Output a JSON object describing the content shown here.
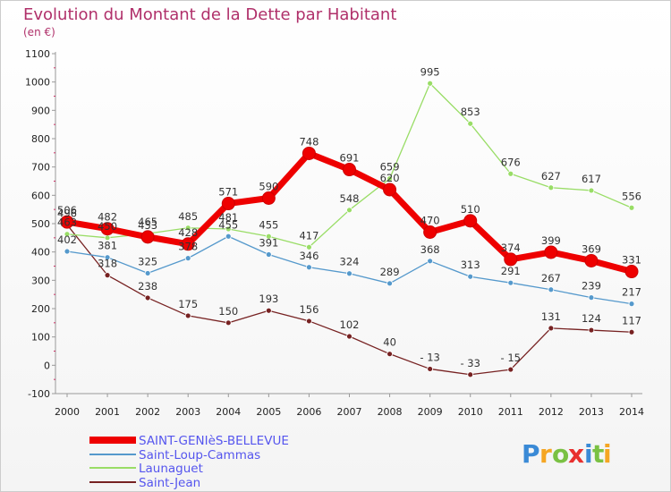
{
  "chart_data": {
    "type": "line",
    "title": "Evolution du Montant de la Dette par Habitant",
    "subtitle": "(en €)",
    "x": [
      "2000",
      "2001",
      "2002",
      "2003",
      "2004",
      "2005",
      "2006",
      "2007",
      "2008",
      "2009",
      "2010",
      "2011",
      "2012",
      "2013",
      "2014"
    ],
    "ylim": [
      -100,
      1100
    ],
    "yticks": [
      -100,
      0,
      100,
      200,
      300,
      400,
      500,
      600,
      700,
      800,
      900,
      1000,
      1100
    ],
    "grid": false,
    "legend_position": "bottom-left",
    "series": [
      {
        "name": "SAINT-GENIèS-BELLEVUE",
        "color": "#ee0000",
        "values": [
          506,
          482,
          453,
          428,
          571,
          590,
          748,
          691,
          620,
          470,
          510,
          374,
          399,
          369,
          331
        ],
        "labels": [
          "506",
          "482",
          "453",
          "428",
          "571",
          "590",
          "748",
          "691",
          "620",
          "470",
          "510",
          "374",
          "399",
          "369",
          "331"
        ]
      },
      {
        "name": "Saint-Loup-Cammas",
        "color": "#5599cc",
        "values": [
          402,
          381,
          325,
          378,
          455,
          391,
          346,
          324,
          289,
          368,
          313,
          291,
          267,
          239,
          217
        ],
        "labels": [
          "402",
          "381",
          "325",
          "378",
          "455",
          "391",
          "346",
          "324",
          "289",
          "368",
          "313",
          "291",
          "267",
          "239",
          "217"
        ]
      },
      {
        "name": "Launaguet",
        "color": "#99dd66",
        "values": [
          463,
          450,
          465,
          485,
          481,
          455,
          417,
          548,
          659,
          995,
          853,
          676,
          627,
          617,
          556
        ],
        "labels": [
          "463",
          "450",
          "465",
          "485",
          "481",
          "455",
          "417",
          "548",
          "659",
          "995",
          "853",
          "676",
          "627",
          "617",
          "556"
        ]
      },
      {
        "name": "Saint-Jean",
        "color": "#772222",
        "values": [
          496,
          318,
          238,
          175,
          150,
          193,
          156,
          102,
          40,
          -13,
          -33,
          -15,
          131,
          124,
          117
        ],
        "labels": [
          "496",
          "318",
          "238",
          "175",
          "150",
          "193",
          "156",
          "102",
          "40",
          "- 13",
          "- 33",
          "- 15",
          "131",
          "124",
          "117"
        ]
      }
    ]
  },
  "logo": {
    "letters": [
      "P",
      "r",
      "o",
      "x",
      "i",
      "t",
      "i"
    ],
    "colors": [
      "#3a8ad6",
      "#f5a623",
      "#7ac143",
      "#e8302e",
      "#3a8ad6",
      "#7ac143",
      "#f5a623"
    ]
  }
}
